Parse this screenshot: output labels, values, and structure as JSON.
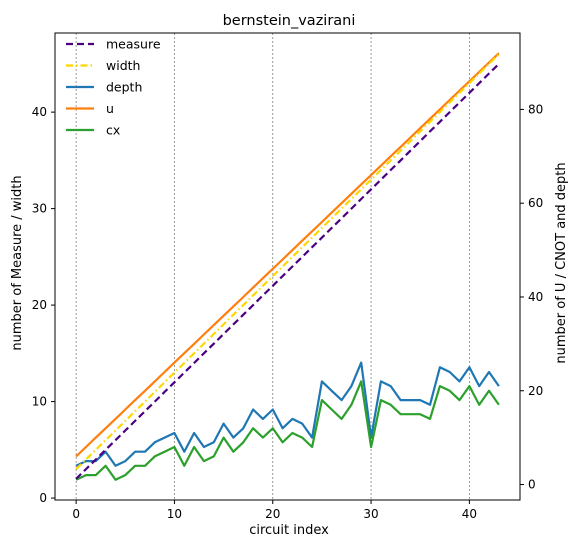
{
  "chart_data": {
    "type": "line",
    "title": "bernstein_vazirani",
    "xlabel": "circuit index",
    "ylabel_left": "number of Measure / width",
    "ylabel_right": "number of U / CNOT and depth",
    "xlim": [
      -2.15,
      45.15
    ],
    "ylim_left": [
      -0.2,
      48.2
    ],
    "ylim_right": [
      -3.3,
      96.3
    ],
    "x_ticks": [
      0,
      10,
      20,
      30,
      40
    ],
    "y_left_ticks": [
      0,
      10,
      20,
      30,
      40
    ],
    "y_right_ticks": [
      0,
      20,
      40,
      60,
      80
    ],
    "vertical_gridlines": [
      0,
      10,
      20,
      30,
      40
    ],
    "legend_position": "upper-left",
    "x": [
      0,
      1,
      2,
      3,
      4,
      5,
      6,
      7,
      8,
      9,
      10,
      11,
      12,
      13,
      14,
      15,
      16,
      17,
      18,
      19,
      20,
      21,
      22,
      23,
      24,
      25,
      26,
      27,
      28,
      29,
      30,
      31,
      32,
      33,
      34,
      35,
      36,
      37,
      38,
      39,
      40,
      41,
      42,
      43
    ],
    "series": [
      {
        "name": "measure",
        "axis": "left",
        "color": "#4b0082",
        "dash": "dashed",
        "values": [
          2,
          3,
          4,
          5,
          6,
          7,
          8,
          9,
          10,
          11,
          12,
          13,
          14,
          15,
          16,
          17,
          18,
          19,
          20,
          21,
          22,
          23,
          24,
          25,
          26,
          27,
          28,
          29,
          30,
          31,
          32,
          33,
          34,
          35,
          36,
          37,
          38,
          39,
          40,
          41,
          42,
          43,
          44,
          45
        ]
      },
      {
        "name": "width",
        "axis": "left",
        "color": "#ffd700",
        "dash": "dashdot",
        "values": [
          3,
          4,
          5,
          6,
          7,
          8,
          9,
          10,
          11,
          12,
          13,
          14,
          15,
          16,
          17,
          18,
          19,
          20,
          21,
          22,
          23,
          24,
          25,
          26,
          27,
          28,
          29,
          30,
          31,
          32,
          33,
          34,
          35,
          36,
          37,
          38,
          39,
          40,
          41,
          42,
          43,
          44,
          45,
          46
        ]
      },
      {
        "name": "depth",
        "axis": "right",
        "color": "#1f77b4",
        "dash": "solid",
        "values": [
          4,
          5,
          5,
          7,
          4,
          5,
          7,
          7,
          9,
          10,
          11,
          7,
          11,
          8,
          9,
          13,
          10,
          12,
          16,
          14,
          16,
          12,
          14,
          13,
          10,
          22,
          20,
          18,
          21,
          26,
          10,
          22,
          21,
          18,
          18,
          18,
          17,
          25,
          24,
          22,
          25,
          21,
          24,
          21
        ]
      },
      {
        "name": "u",
        "axis": "right",
        "color": "#ff7f0e",
        "dash": "solid",
        "values": [
          6,
          8,
          10,
          12,
          14,
          16,
          18,
          20,
          22,
          24,
          26,
          28,
          30,
          32,
          34,
          36,
          38,
          40,
          42,
          44,
          46,
          48,
          50,
          52,
          54,
          56,
          58,
          60,
          62,
          64,
          66,
          68,
          70,
          72,
          74,
          76,
          78,
          80,
          82,
          84,
          86,
          88,
          90,
          92
        ]
      },
      {
        "name": "cx",
        "axis": "right",
        "color": "#2ca02c",
        "dash": "solid",
        "values": [
          1,
          2,
          2,
          4,
          1,
          2,
          4,
          4,
          6,
          7,
          8,
          4,
          8,
          5,
          6,
          10,
          7,
          9,
          12,
          10,
          12,
          9,
          11,
          10,
          8,
          18,
          16,
          14,
          17,
          22,
          8,
          18,
          17,
          15,
          15,
          15,
          14,
          21,
          20,
          18,
          21,
          17,
          20,
          17
        ]
      }
    ]
  }
}
